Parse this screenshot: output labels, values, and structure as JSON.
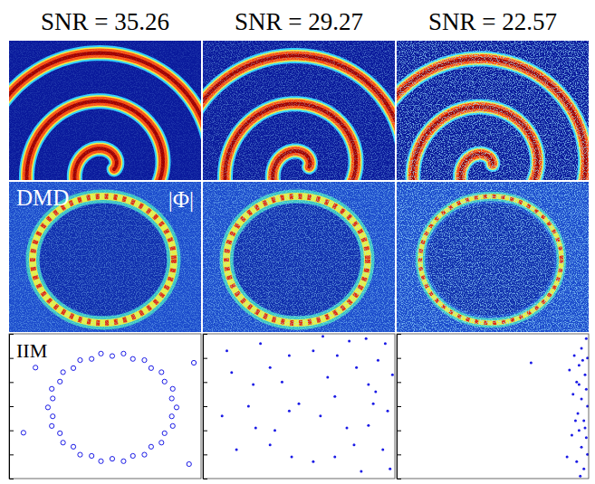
{
  "chart_data": [
    {
      "type": "snapshot",
      "title": "SNR = 35.26"
    },
    {
      "type": "snapshot",
      "title": "SNR = 29.27"
    },
    {
      "type": "snapshot",
      "title": "SNR = 22.57"
    },
    {
      "type": "mode",
      "label": "DMD",
      "annotation": "|Φ|"
    },
    {
      "type": "mode"
    },
    {
      "type": "mode"
    },
    {
      "type": "scatter",
      "label": "IIM",
      "color": "#1a1ae6",
      "marker": "circle",
      "tick_labels": false,
      "xlim": [
        0,
        8
      ],
      "ylim": [
        0,
        6
      ],
      "yticks": [
        1,
        2,
        3,
        4,
        5
      ],
      "x": [
        6.98,
        6.78,
        6.82,
        6.48,
        6.35,
        5.92,
        5.64,
        5.16,
        4.77,
        4.3,
        3.83,
        3.44,
        2.96,
        2.68,
        2.25,
        2.12,
        1.78,
        1.82,
        1.62,
        1.82,
        1.78,
        2.12,
        2.25,
        2.68,
        2.96,
        3.44,
        3.83,
        4.3,
        4.77,
        5.16,
        5.64,
        5.92,
        6.35,
        6.48,
        6.82,
        6.78,
        1.1,
        7.5,
        0.6,
        7.7
      ],
      "values": [
        2.95,
        3.32,
        3.72,
        4.02,
        4.41,
        4.58,
        4.91,
        4.96,
        5.18,
        5.08,
        5.18,
        4.96,
        4.91,
        4.58,
        4.41,
        4.02,
        3.72,
        3.32,
        2.95,
        2.58,
        2.18,
        1.88,
        1.49,
        1.32,
        0.99,
        0.94,
        0.72,
        0.82,
        0.72,
        0.94,
        0.99,
        1.32,
        1.49,
        1.88,
        2.18,
        2.58,
        4.6,
        0.6,
        1.9,
        4.8
      ]
    },
    {
      "type": "scatter",
      "color": "#1a1ae6",
      "marker": "dot",
      "tick_labels": false,
      "xlim": [
        0,
        8
      ],
      "ylim": [
        0,
        6
      ],
      "yticks": [
        1,
        2,
        3,
        4,
        5
      ],
      "x": [
        7.1,
        6.9,
        6.4,
        5.6,
        4.6,
        3.6,
        2.8,
        2.1,
        1.9,
        2.2,
        2.8,
        3.7,
        4.6,
        5.5,
        6.3,
        6.9,
        5.2,
        3.3,
        3.0,
        6.0,
        7.6,
        6.8,
        7.9,
        7.3,
        6.1,
        5.0,
        7.7,
        7.5,
        7.8,
        1.0,
        0.8,
        1.4,
        4.0,
        4.9,
        3.6,
        5.5,
        2.4,
        6.6,
        1.2,
        7.2
      ],
      "values": [
        3.1,
        3.9,
        4.6,
        5.1,
        5.3,
        5.1,
        4.6,
        3.9,
        3.0,
        2.1,
        1.4,
        0.9,
        0.7,
        0.9,
        1.4,
        2.2,
        4.2,
        4.0,
        2.0,
        2.1,
        5.6,
        5.8,
        4.3,
        4.9,
        5.7,
        5.9,
        2.8,
        1.2,
        0.4,
        5.3,
        2.6,
        1.2,
        3.1,
        2.6,
        2.8,
        3.4,
        5.6,
        0.3,
        4.4,
        3.6
      ]
    },
    {
      "type": "scatter",
      "color": "#1a1ae6",
      "marker": "dot",
      "tick_labels": false,
      "xlim": [
        0,
        8
      ],
      "ylim": [
        0,
        6
      ],
      "yticks": [
        1,
        2,
        3,
        4,
        5
      ],
      "x": [
        7.9,
        7.7,
        7.95,
        7.6,
        7.85,
        7.5,
        7.9,
        7.7,
        7.95,
        7.55,
        7.8,
        7.6,
        7.9,
        7.7,
        7.95,
        7.5,
        7.8,
        7.65,
        7.4,
        7.35,
        7.3,
        7.45,
        7.2,
        5.6,
        7.1,
        7.75,
        7.85,
        7.6
      ],
      "values": [
        5.8,
        5.4,
        5.0,
        4.7,
        4.3,
        4.0,
        3.7,
        3.3,
        3.0,
        2.7,
        2.4,
        2.0,
        1.7,
        1.3,
        1.0,
        0.7,
        0.4,
        0.1,
        5.1,
        3.5,
        1.8,
        2.4,
        4.5,
        4.8,
        0.9,
        4.9,
        2.1,
        3.9
      ]
    }
  ]
}
